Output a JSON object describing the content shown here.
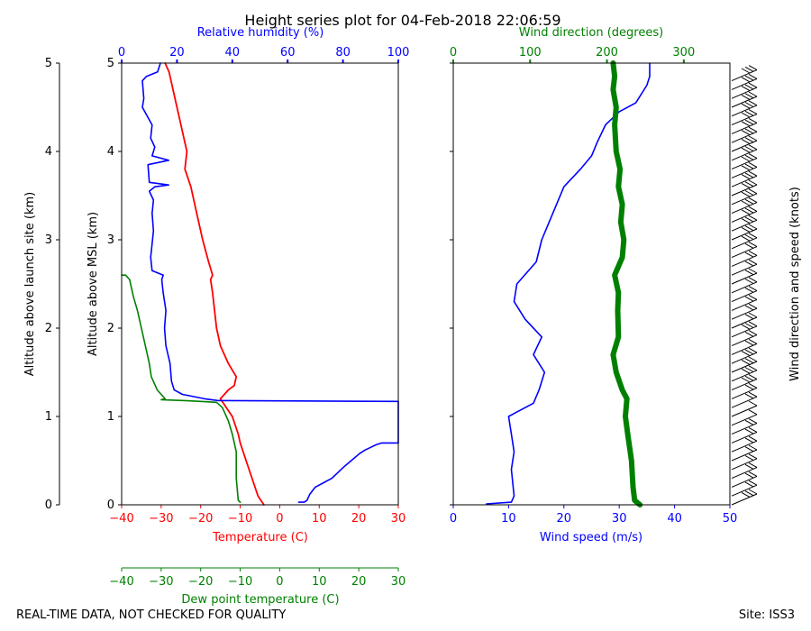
{
  "chart_data": {
    "type": "line",
    "title": "Height series plot for 04-Feb-2018 22:06:59",
    "footer_left": "REAL-TIME DATA, NOT CHECKED FOR QUALITY",
    "footer_right": "Site: ISS3",
    "colors": {
      "temperature": "#ff0000",
      "humidity": "#0000ff",
      "dewpoint": "#008000",
      "wind_speed": "#0000ff",
      "wind_direction": "#008000",
      "barbs": "#000000",
      "frame": "#000000"
    },
    "left_axis": {
      "label": "Altitude above launch site (km)",
      "range": [
        0,
        5
      ],
      "ticks": [
        "0",
        "1",
        "2",
        "3",
        "4",
        "5"
      ]
    },
    "msl_axis": {
      "label": "Altitude above MSL (km)",
      "range": [
        0,
        5
      ],
      "ticks": [
        "0",
        "1",
        "2",
        "3",
        "4",
        "5"
      ]
    },
    "temperature_axis": {
      "label": "Temperature (C)",
      "range": [
        -40,
        30
      ],
      "ticks": [
        "−40",
        "−30",
        "−20",
        "−10",
        "0",
        "10",
        "20",
        "30"
      ]
    },
    "dewpoint_axis": {
      "label": "Dew point temperature (C)",
      "range": [
        -40,
        30
      ],
      "ticks": [
        "−40",
        "−30",
        "−20",
        "−10",
        "0",
        "10",
        "20",
        "30"
      ]
    },
    "humidity_axis": {
      "label": "Relative humidity (%)",
      "range": [
        0,
        100
      ],
      "ticks": [
        "0",
        "20",
        "40",
        "60",
        "80",
        "100"
      ]
    },
    "wind_speed_axis": {
      "label": "Wind speed (m/s)",
      "range": [
        0,
        50
      ],
      "ticks": [
        "0",
        "10",
        "20",
        "30",
        "40",
        "50"
      ]
    },
    "wind_direction_axis": {
      "label": "Wind direction (degrees)",
      "range": [
        0,
        360
      ],
      "ticks": [
        "0",
        "100",
        "200",
        "300"
      ]
    },
    "barb_axis": {
      "label": "Wind direction and speed (knots)"
    },
    "series": [
      {
        "name": "Temperature",
        "axis": "temperature",
        "points": [
          [
            -4,
            0
          ],
          [
            -5.5,
            0.1
          ],
          [
            -7,
            0.3
          ],
          [
            -8.5,
            0.5
          ],
          [
            -10,
            0.7
          ],
          [
            -10.5,
            0.8
          ],
          [
            -12,
            1.0
          ],
          [
            -13.5,
            1.1
          ],
          [
            -15,
            1.2
          ],
          [
            -13,
            1.3
          ],
          [
            -11.5,
            1.35
          ],
          [
            -11,
            1.45
          ],
          [
            -13,
            1.6
          ],
          [
            -15,
            1.8
          ],
          [
            -16,
            2.0
          ],
          [
            -16.5,
            2.2
          ],
          [
            -17,
            2.4
          ],
          [
            -17.5,
            2.55
          ],
          [
            -17,
            2.6
          ],
          [
            -18,
            2.75
          ],
          [
            -19.5,
            3.0
          ],
          [
            -21,
            3.3
          ],
          [
            -22.5,
            3.6
          ],
          [
            -24,
            3.8
          ],
          [
            -23.5,
            4.0
          ],
          [
            -24.5,
            4.2
          ],
          [
            -26,
            4.5
          ],
          [
            -27,
            4.7
          ],
          [
            -28,
            4.9
          ],
          [
            -29,
            5.0
          ]
        ]
      },
      {
        "name": "Dew point",
        "axis": "dewpoint",
        "points": [
          [
            -10,
            0.03
          ],
          [
            -10.5,
            0.05
          ],
          [
            -11,
            0.3
          ],
          [
            -11,
            0.6
          ],
          [
            -11.5,
            0.7
          ],
          [
            -12,
            0.8
          ],
          [
            -13,
            0.95
          ],
          [
            -14.5,
            1.1
          ],
          [
            -16,
            1.16
          ],
          [
            -20,
            1.17
          ],
          [
            -24,
            1.18
          ],
          [
            -30,
            1.19
          ],
          [
            -29,
            1.2
          ],
          [
            -31,
            1.3
          ],
          [
            -32.5,
            1.45
          ],
          [
            -33,
            1.6
          ],
          [
            -34,
            1.8
          ],
          [
            -35,
            2.0
          ],
          [
            -36,
            2.2
          ],
          [
            -37,
            2.35
          ],
          [
            -37.5,
            2.45
          ],
          [
            -38,
            2.55
          ],
          [
            -39,
            2.6
          ],
          [
            -40,
            2.6
          ]
        ]
      },
      {
        "name": "Relative humidity",
        "axis": "humidity",
        "points": [
          [
            64,
            0.03
          ],
          [
            66,
            0.03
          ],
          [
            67,
            0.05
          ],
          [
            68,
            0.12
          ],
          [
            70,
            0.2
          ],
          [
            73,
            0.25
          ],
          [
            76,
            0.3
          ],
          [
            78,
            0.36
          ],
          [
            80,
            0.42
          ],
          [
            83,
            0.5
          ],
          [
            86,
            0.58
          ],
          [
            88,
            0.62
          ],
          [
            90,
            0.65
          ],
          [
            92,
            0.68
          ],
          [
            94,
            0.7
          ],
          [
            100,
            0.7
          ],
          [
            100,
            1.17
          ],
          [
            35,
            1.18
          ],
          [
            30,
            1.2
          ],
          [
            22,
            1.25
          ],
          [
            19,
            1.3
          ],
          [
            18,
            1.4
          ],
          [
            17.5,
            1.6
          ],
          [
            16,
            1.8
          ],
          [
            15.5,
            2.0
          ],
          [
            16,
            2.2
          ],
          [
            15,
            2.4
          ],
          [
            14.5,
            2.55
          ],
          [
            15,
            2.6
          ],
          [
            11,
            2.65
          ],
          [
            10.5,
            2.8
          ],
          [
            11.5,
            3.1
          ],
          [
            11,
            3.3
          ],
          [
            11.5,
            3.45
          ],
          [
            10,
            3.55
          ],
          [
            12,
            3.6
          ],
          [
            17,
            3.62
          ],
          [
            10,
            3.65
          ],
          [
            9.5,
            3.85
          ],
          [
            17,
            3.9
          ],
          [
            11,
            3.95
          ],
          [
            12,
            4.05
          ],
          [
            10.5,
            4.15
          ],
          [
            11,
            4.3
          ],
          [
            7.5,
            4.5
          ],
          [
            8,
            4.6
          ],
          [
            7.5,
            4.8
          ],
          [
            9,
            4.85
          ],
          [
            13,
            4.9
          ],
          [
            14,
            5.0
          ]
        ]
      },
      {
        "name": "Wind speed",
        "axis": "wind_speed",
        "points": [
          [
            6,
            0.01
          ],
          [
            10.5,
            0.03
          ],
          [
            11,
            0.1
          ],
          [
            10.5,
            0.4
          ],
          [
            11,
            0.6
          ],
          [
            10.5,
            0.8
          ],
          [
            10,
            1.0
          ],
          [
            11.5,
            1.05
          ],
          [
            14.5,
            1.15
          ],
          [
            15.5,
            1.3
          ],
          [
            16.5,
            1.5
          ],
          [
            14.5,
            1.7
          ],
          [
            16,
            1.9
          ],
          [
            13,
            2.1
          ],
          [
            11,
            2.3
          ],
          [
            11.5,
            2.5
          ],
          [
            15,
            2.75
          ],
          [
            16,
            3.0
          ],
          [
            18,
            3.3
          ],
          [
            20,
            3.6
          ],
          [
            23,
            3.8
          ],
          [
            25,
            3.95
          ],
          [
            26,
            4.1
          ],
          [
            27.5,
            4.3
          ],
          [
            30,
            4.45
          ],
          [
            33,
            4.55
          ],
          [
            35,
            4.75
          ],
          [
            35.5,
            4.85
          ],
          [
            35.5,
            5.0
          ]
        ]
      },
      {
        "name": "Wind direction",
        "axis": "wind_direction",
        "points": [
          [
            243,
            0.0
          ],
          [
            236,
            0.05
          ],
          [
            234,
            0.2
          ],
          [
            232,
            0.5
          ],
          [
            227,
            0.8
          ],
          [
            224,
            1.0
          ],
          [
            226,
            1.2
          ],
          [
            220,
            1.3
          ],
          [
            212,
            1.5
          ],
          [
            208,
            1.7
          ],
          [
            215,
            1.9
          ],
          [
            214,
            2.2
          ],
          [
            215,
            2.4
          ],
          [
            210,
            2.6
          ],
          [
            220,
            2.8
          ],
          [
            222,
            3.0
          ],
          [
            218,
            3.2
          ],
          [
            220,
            3.4
          ],
          [
            215,
            3.6
          ],
          [
            217,
            3.8
          ],
          [
            212,
            4.0
          ],
          [
            210,
            4.3
          ],
          [
            212,
            4.5
          ],
          [
            208,
            4.7
          ],
          [
            210,
            4.85
          ],
          [
            208,
            5.0
          ]
        ]
      }
    ]
  }
}
